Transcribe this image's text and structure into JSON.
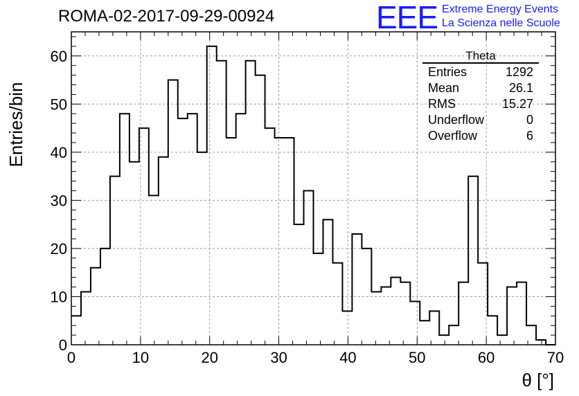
{
  "title": "ROMA-02-2017-09-29-00924",
  "logo": {
    "mark": "EEE",
    "line1": "Extreme Energy Events",
    "line2": "La Scienza nelle Scuole"
  },
  "stats_box": {
    "title": "Theta",
    "rows": [
      {
        "label": "Entries",
        "value": "1292"
      },
      {
        "label": "Mean",
        "value": "26.1"
      },
      {
        "label": "RMS",
        "value": "15.27"
      },
      {
        "label": "Underflow",
        "value": "0"
      },
      {
        "label": "Overflow",
        "value": "6"
      }
    ]
  },
  "chart_data": {
    "type": "histogram",
    "xlabel": "θ [°]",
    "ylabel": "Entries/bin",
    "xlim": [
      0,
      70
    ],
    "ylim": [
      0,
      65
    ],
    "bin_width": 1.4,
    "x_ticks": [
      0,
      10,
      20,
      30,
      40,
      50,
      60,
      70
    ],
    "y_ticks": [
      0,
      10,
      20,
      30,
      40,
      50,
      60
    ],
    "grid": true,
    "values": [
      6,
      11,
      16,
      20,
      35,
      48,
      38,
      45,
      31,
      39,
      55,
      47,
      48,
      40,
      62,
      59,
      43,
      48,
      59,
      56,
      45,
      43,
      43,
      25,
      32,
      19,
      26,
      17,
      7,
      23,
      20,
      11,
      12,
      14,
      13,
      9,
      5,
      7,
      2,
      4,
      13,
      35,
      17,
      6,
      2,
      12,
      13,
      4,
      1,
      0
    ]
  }
}
